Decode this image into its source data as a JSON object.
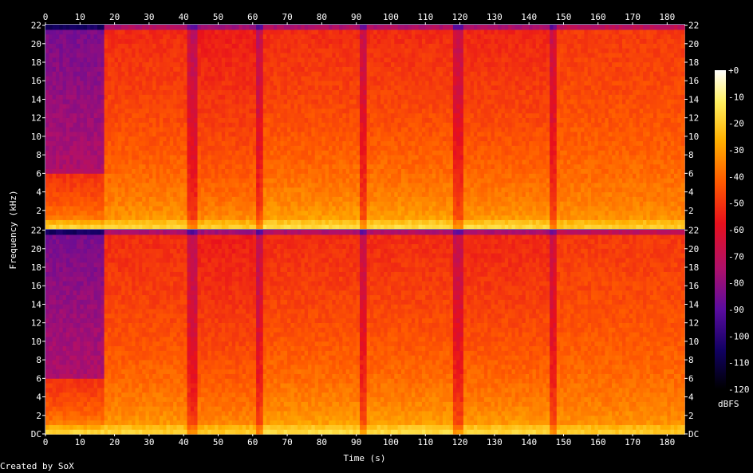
{
  "chart_data": {
    "type": "heatmap",
    "title": "",
    "xlabel": "Time (s)",
    "ylabel": "Frequency (kHz)",
    "x_range": [
      0,
      185
    ],
    "y_range_khz": [
      0,
      22.05
    ],
    "x_ticks": [
      0,
      10,
      20,
      30,
      40,
      50,
      60,
      70,
      80,
      90,
      100,
      110,
      120,
      130,
      140,
      150,
      160,
      170,
      180
    ],
    "y_ticks": [
      {
        "value": 0,
        "label": "DC"
      },
      {
        "value": 2,
        "label": "2"
      },
      {
        "value": 4,
        "label": "4"
      },
      {
        "value": 6,
        "label": "6"
      },
      {
        "value": 8,
        "label": "8"
      },
      {
        "value": 10,
        "label": "10"
      },
      {
        "value": 12,
        "label": "12"
      },
      {
        "value": 14,
        "label": "14"
      },
      {
        "value": 16,
        "label": "16"
      },
      {
        "value": 18,
        "label": "18"
      },
      {
        "value": 20,
        "label": "20"
      },
      {
        "value": 22,
        "label": "22"
      }
    ],
    "channels": 2,
    "colorbar": {
      "label": "dBFS",
      "range": [
        -120,
        0
      ],
      "ticks": [
        {
          "value": 0,
          "label": "+0"
        },
        {
          "value": -10,
          "label": "-10"
        },
        {
          "value": -20,
          "label": "-20"
        },
        {
          "value": -30,
          "label": "-30"
        },
        {
          "value": -40,
          "label": "-40"
        },
        {
          "value": -50,
          "label": "-50"
        },
        {
          "value": -60,
          "label": "-60"
        },
        {
          "value": -70,
          "label": "-70"
        },
        {
          "value": -80,
          "label": "-80"
        },
        {
          "value": -90,
          "label": "-90"
        },
        {
          "value": -100,
          "label": "-100"
        },
        {
          "value": -110,
          "label": "-110"
        },
        {
          "value": -120,
          "label": "-120"
        }
      ],
      "colors": [
        "#000000",
        "#100060",
        "#5a0ca0",
        "#b0106a",
        "#e8101c",
        "#ff5a00",
        "#ffb000",
        "#fff060",
        "#ffffff"
      ]
    },
    "segments": [
      {
        "start": 0,
        "end": 16.5,
        "level": -28,
        "cutoff_khz": 6,
        "hf_level": -75
      },
      {
        "start": 16.5,
        "end": 42,
        "level": -28,
        "hf_level": -55
      },
      {
        "start": 42,
        "end": 61.5,
        "level": -30,
        "hf_level": -58
      },
      {
        "start": 61.5,
        "end": 91.5,
        "level": -26,
        "hf_level": -55
      },
      {
        "start": 91.5,
        "end": 119,
        "level": -26,
        "hf_level": -55
      },
      {
        "start": 119,
        "end": 146.5,
        "level": -27,
        "hf_level": -56
      },
      {
        "start": 146.5,
        "end": 185,
        "level": -30,
        "hf_level": -52
      }
    ],
    "dips_s": [
      42,
      61.5,
      91.5,
      119,
      146.5
    ]
  },
  "credit": "Created by SoX"
}
